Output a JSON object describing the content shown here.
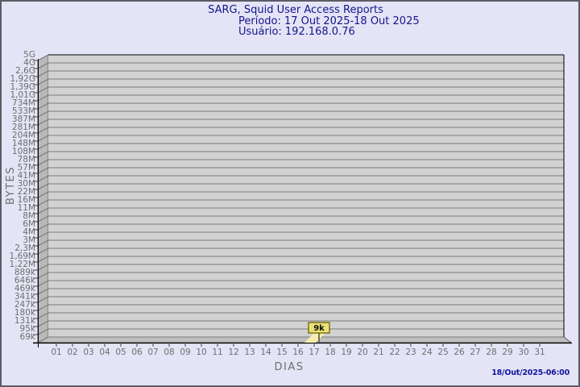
{
  "header": {
    "title": "SARG, Squid User Access Reports",
    "period": "Período: 17 Out 2025-18 Out 2025",
    "user": "Usuário: 192.168.0.76"
  },
  "footer": {
    "timestamp": "18/Out/2025-06:00"
  },
  "chart_data": {
    "type": "line",
    "title": "SARG, Squid User Access Reports",
    "subtitle": "Período: 17 Out 2025-18 Out 2025",
    "user": "Usuário: 192.168.0.76",
    "xlabel": "DIAS",
    "ylabel": "BYTES",
    "grid": true,
    "style": "3d-plinth",
    "x_tick_labels": [
      "01",
      "02",
      "03",
      "04",
      "05",
      "06",
      "07",
      "08",
      "09",
      "10",
      "11",
      "12",
      "13",
      "14",
      "15",
      "16",
      "17",
      "18",
      "19",
      "20",
      "21",
      "22",
      "23",
      "24",
      "25",
      "26",
      "27",
      "28",
      "29",
      "30",
      "31"
    ],
    "y_tick_labels": [
      "5G",
      "4G",
      "2,6G",
      "1,92G",
      "1,39G",
      "1,01G",
      "734M",
      "533M",
      "387M",
      "281M",
      "204M",
      "148M",
      "108M",
      "78M",
      "57M",
      "41M",
      "30M",
      "22M",
      "16M",
      "11M",
      "8M",
      "6M",
      "4M",
      "3M",
      "2,3M",
      "1,69M",
      "1,22M",
      "889k",
      "646k",
      "469k",
      "341k",
      "247k",
      "180k",
      "131k",
      "95k",
      "69k"
    ],
    "points": [
      {
        "x": "17",
        "label": "9k"
      }
    ],
    "colors": {
      "background": "#e4e4f6",
      "frame": "#5c5c66",
      "title_text": "#14148c",
      "axis_text": "#6e6e6e",
      "face": "#d2d2d2",
      "wall": "#b9b9b9",
      "floor": "#bfbfbf",
      "gridline": "#7a7a7a",
      "axis_line": "#000000",
      "marker_fill": "#eae17c",
      "marker_border": "#6b6400",
      "marker_flag": "#f6eeae",
      "marker_text": "#111100",
      "timestamp_text": "#1414a0"
    }
  }
}
